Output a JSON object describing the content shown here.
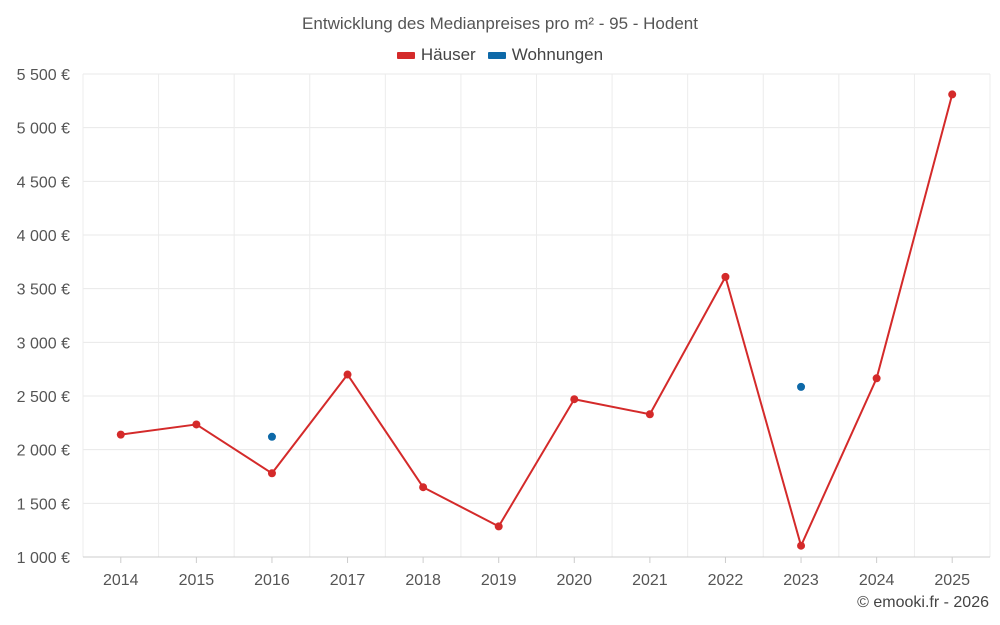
{
  "chart_data": {
    "type": "line",
    "title": "Entwicklung des Medianpreises pro m² - 95 - Hodent",
    "categories": [
      "2014",
      "2015",
      "2016",
      "2017",
      "2018",
      "2019",
      "2020",
      "2021",
      "2022",
      "2023",
      "2024",
      "2025"
    ],
    "ylim": [
      1000,
      5500
    ],
    "yticks": [
      1000,
      1500,
      2000,
      2500,
      3000,
      3500,
      4000,
      4500,
      5000,
      5500
    ],
    "ytick_labels": [
      "1 000 €",
      "1 500 €",
      "2 000 €",
      "2 500 €",
      "3 000 €",
      "3 500 €",
      "4 000 €",
      "4 500 €",
      "5 000 €",
      "5 500 €"
    ],
    "grid": true,
    "legend_position": "top-center",
    "series": [
      {
        "name": "Häuser",
        "color": "#d42a2a",
        "values": [
          2140,
          2235,
          1780,
          2700,
          1650,
          1285,
          2470,
          2330,
          3610,
          1105,
          2665,
          5310
        ]
      },
      {
        "name": "Wohnungen",
        "color": "#0e69a8",
        "values": [
          null,
          null,
          2120,
          null,
          null,
          null,
          null,
          null,
          null,
          2585,
          null,
          null
        ]
      }
    ]
  },
  "credit": "© emooki.fr - 2026"
}
